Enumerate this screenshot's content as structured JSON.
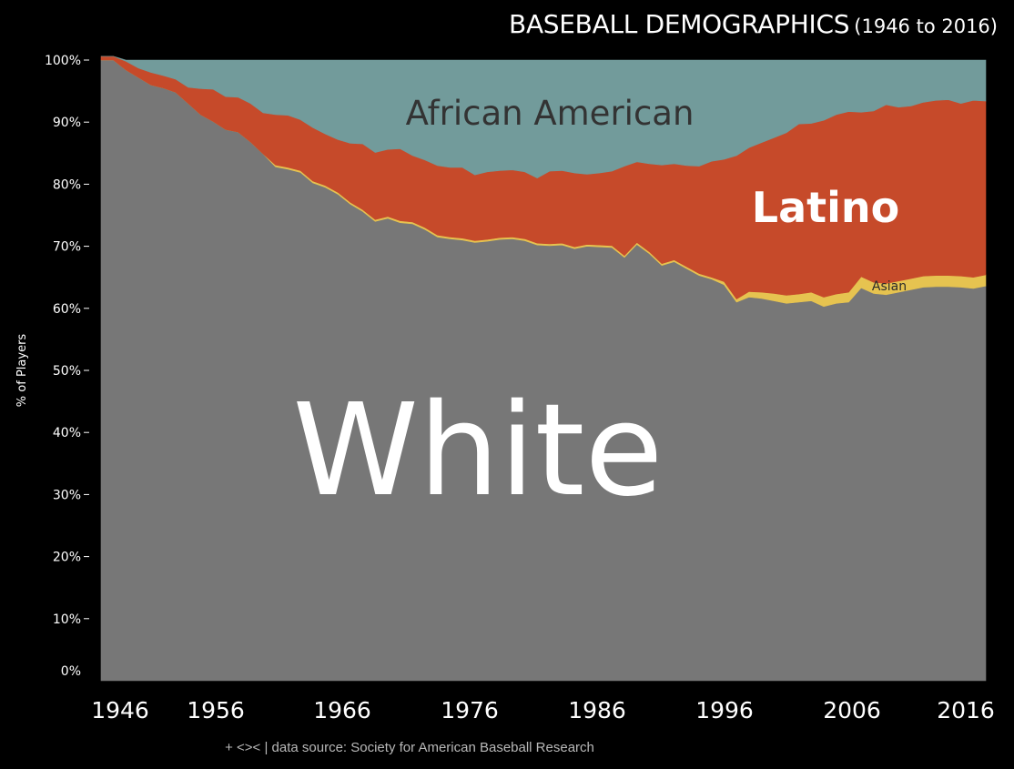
{
  "title": {
    "main": "BASEBALL DEMOGRAPHICS",
    "sub": "(1946 to 2016)"
  },
  "footer": "+ <>< | data source: Society for American Baseball Research",
  "chart_data": {
    "type": "area",
    "stacked": true,
    "normalized": true,
    "ylabel": "% of Players",
    "ylim": [
      0,
      100
    ],
    "xlim": [
      1946,
      2017
    ],
    "x_ticks": [
      "1946",
      "1956",
      "1966",
      "1976",
      "1986",
      "1996",
      "2006",
      "2016"
    ],
    "y_ticks": [
      "0%",
      "10%",
      "20%",
      "30%",
      "40%",
      "50%",
      "60%",
      "70%",
      "80%",
      "90%",
      "100%"
    ],
    "grid": false,
    "legend": "none (series labels placed inside the areas)",
    "x": [
      1946,
      1947,
      1948,
      1949,
      1950,
      1951,
      1952,
      1953,
      1954,
      1955,
      1956,
      1957,
      1958,
      1959,
      1960,
      1961,
      1962,
      1963,
      1964,
      1965,
      1966,
      1967,
      1968,
      1969,
      1970,
      1971,
      1972,
      1973,
      1974,
      1975,
      1976,
      1977,
      1978,
      1979,
      1980,
      1981,
      1982,
      1983,
      1984,
      1985,
      1986,
      1987,
      1988,
      1989,
      1990,
      1991,
      1992,
      1993,
      1994,
      1995,
      1996,
      1997,
      1998,
      1999,
      2000,
      2001,
      2002,
      2003,
      2004,
      2005,
      2006,
      2007,
      2008,
      2009,
      2010,
      2011,
      2012,
      2013,
      2014,
      2015,
      2016,
      2017
    ],
    "series": [
      {
        "name": "White",
        "color": "#777777",
        "values": [
          100.0,
          100.0,
          98.4,
          97.2,
          96.0,
          95.5,
          94.8,
          93.0,
          91.2,
          90.1,
          88.8,
          88.4,
          86.8,
          84.9,
          82.8,
          82.4,
          81.9,
          80.2,
          79.5,
          78.4,
          76.8,
          75.6,
          74.0,
          74.5,
          73.8,
          73.6,
          72.7,
          71.5,
          71.2,
          71.0,
          70.6,
          70.8,
          71.1,
          71.2,
          70.9,
          70.2,
          70.1,
          70.2,
          69.6,
          70.0,
          69.9,
          69.8,
          68.2,
          70.3,
          68.8,
          66.9,
          67.5,
          66.4,
          65.3,
          64.7,
          63.8,
          61.0,
          61.8,
          61.6,
          61.2,
          60.8,
          61.0,
          61.2,
          60.3,
          60.8,
          61.0,
          63.3,
          62.4,
          62.2,
          62.6,
          63.0,
          63.4,
          63.5,
          63.5,
          63.4,
          63.2,
          63.6
        ]
      },
      {
        "name": "Asian",
        "color": "#e6c350",
        "values": [
          0,
          0,
          0,
          0,
          0,
          0,
          0,
          0,
          0,
          0,
          0,
          0,
          0,
          0,
          0.3,
          0.3,
          0.3,
          0.3,
          0.3,
          0.3,
          0.3,
          0.3,
          0.3,
          0.3,
          0.3,
          0.3,
          0.3,
          0.3,
          0.3,
          0.3,
          0.3,
          0.3,
          0.3,
          0.3,
          0.3,
          0.3,
          0.3,
          0.3,
          0.3,
          0.3,
          0.3,
          0.3,
          0.3,
          0.3,
          0.3,
          0.3,
          0.3,
          0.3,
          0.3,
          0.3,
          0.5,
          0.5,
          0.9,
          1.0,
          1.2,
          1.3,
          1.3,
          1.4,
          1.5,
          1.5,
          1.6,
          1.8,
          1.8,
          1.8,
          1.8,
          1.8,
          1.8,
          1.8,
          1.8,
          1.8,
          1.8,
          1.8
        ]
      },
      {
        "name": "Latino",
        "color": "#c64a2a",
        "values": [
          0.6,
          0.6,
          1.4,
          1.5,
          2.0,
          2.0,
          2.1,
          2.6,
          4.2,
          5.2,
          5.3,
          5.6,
          6.2,
          6.6,
          8.1,
          8.4,
          8.2,
          8.6,
          8.3,
          8.5,
          9.5,
          10.6,
          10.8,
          10.8,
          11.6,
          10.7,
          10.9,
          11.2,
          11.2,
          11.4,
          10.6,
          10.9,
          10.8,
          10.8,
          10.8,
          10.5,
          11.7,
          11.7,
          11.9,
          11.3,
          11.6,
          12.0,
          14.4,
          13.0,
          14.2,
          15.9,
          15.5,
          16.3,
          17.3,
          18.7,
          19.7,
          23.1,
          23.2,
          24.1,
          25.1,
          26.2,
          27.4,
          27.2,
          28.5,
          28.9,
          29.1,
          26.5,
          27.6,
          28.8,
          28.0,
          27.8,
          28.0,
          28.2,
          28.3,
          27.8,
          28.5,
          28.0
        ]
      },
      {
        "name": "African American",
        "color": "#729b9b",
        "values": [
          0,
          0,
          0.2,
          1.3,
          2.0,
          2.5,
          3.1,
          4.4,
          4.6,
          4.7,
          5.9,
          6.0,
          7.0,
          8.5,
          8.8,
          8.9,
          9.6,
          10.9,
          11.9,
          12.8,
          13.4,
          13.5,
          14.9,
          14.4,
          14.3,
          15.4,
          16.1,
          17.0,
          17.3,
          17.3,
          18.5,
          18.0,
          17.8,
          17.7,
          18.0,
          19.0,
          17.9,
          17.8,
          18.2,
          18.4,
          18.2,
          17.9,
          17.1,
          16.4,
          16.7,
          16.9,
          16.7,
          17.0,
          17.1,
          16.3,
          16.0,
          15.4,
          14.1,
          13.3,
          12.5,
          11.7,
          10.3,
          10.2,
          9.7,
          8.8,
          8.3,
          8.4,
          8.2,
          7.2,
          7.6,
          7.4,
          6.8,
          6.5,
          6.4,
          7.0,
          6.5,
          6.6
        ]
      }
    ],
    "annotations": [
      "African American",
      "Latino",
      "Asian",
      "White"
    ]
  }
}
